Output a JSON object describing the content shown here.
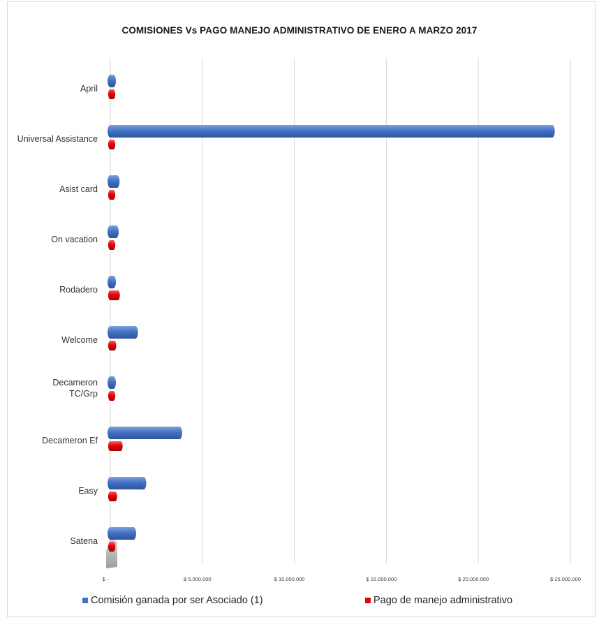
{
  "chart_data": {
    "type": "bar",
    "orientation": "horizontal",
    "title": "COMISIONES Vs PAGO MANEJO ADMINISTRATIVO DE ENERO A MARZO 2017",
    "categories": [
      "April",
      "Universal Assistance",
      "Asist card",
      "On vacation",
      "Rodadero",
      "Welcome",
      "Decameron TC/Grp",
      "Decameron Ef",
      "Easy",
      "Satena"
    ],
    "series": [
      {
        "name": "Comisión ganada por ser Asociado (1)",
        "color": "#4472c4",
        "values": [
          150000,
          24000000,
          350000,
          300000,
          150000,
          1350000,
          150000,
          3750000,
          1800000,
          1250000
        ]
      },
      {
        "name": "Pago de manejo administrativo",
        "color": "#e0050a",
        "values": [
          150000,
          150000,
          150000,
          150000,
          400000,
          200000,
          150000,
          550000,
          250000,
          150000
        ]
      }
    ],
    "x_ticks": [
      0,
      5000000,
      10000000,
      15000000,
      20000000,
      25000000
    ],
    "x_tick_labels": [
      "$ -",
      "$ 5.000.000",
      "$ 10.000.000",
      "$ 15.000.000",
      "$ 20.000.000",
      "$ 25.000.000"
    ],
    "xlim": [
      0,
      25000000
    ],
    "grid": true,
    "legend_position": "bottom"
  }
}
